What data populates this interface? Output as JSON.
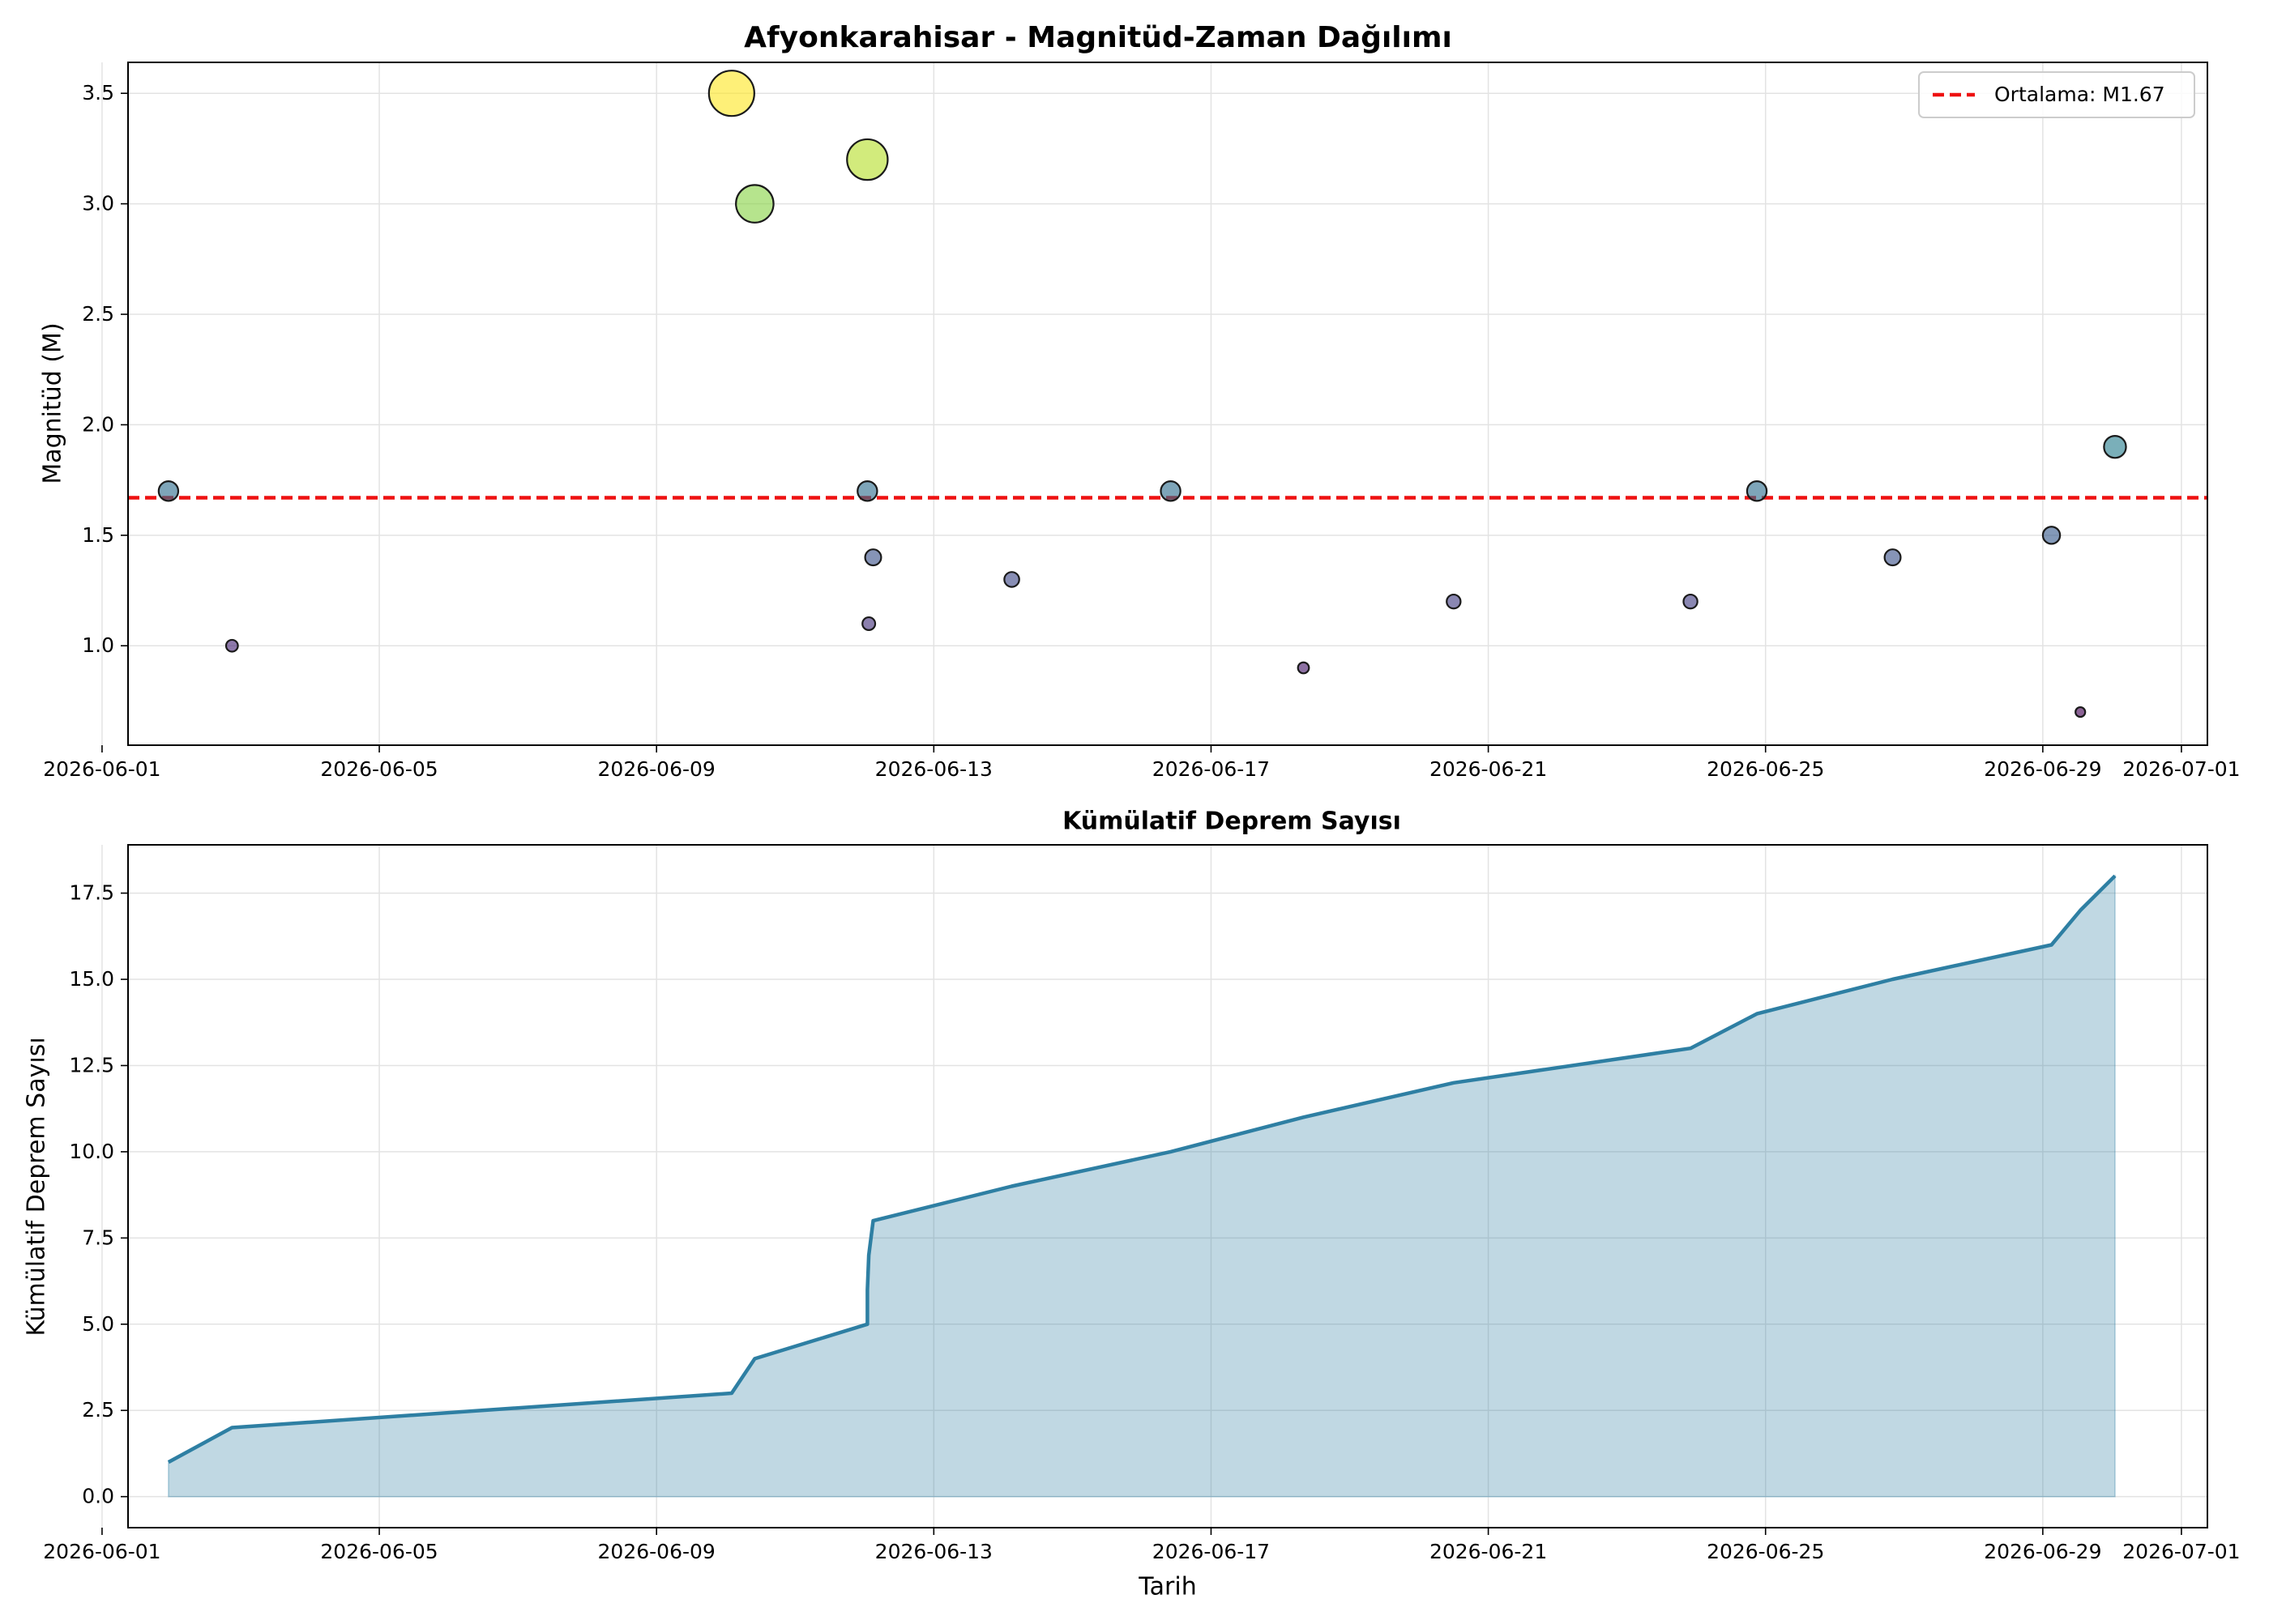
{
  "chart_data": [
    {
      "type": "scatter",
      "title": "Afyonkarahisar - Magnitüd-Zaman Dağılımı",
      "xlabel": "",
      "ylabel": "Magnitüd (M)",
      "xlim": [
        "2026-06-01T09:00",
        "2026-07-01T09:00"
      ],
      "ylim": [
        0.55,
        3.64
      ],
      "grid": true,
      "x_ticks": [
        "2026-06-01",
        "2026-06-05",
        "2026-06-09",
        "2026-06-13",
        "2026-06-17",
        "2026-06-21",
        "2026-06-25",
        "2026-06-29",
        "2026-07-01"
      ],
      "y_ticks": [
        "1.0",
        "1.5",
        "2.0",
        "2.5",
        "3.0",
        "3.5"
      ],
      "legend": {
        "position": "top-right",
        "entries": [
          {
            "label": "Ortalama: M1.67",
            "style": "dashed",
            "color": "#ee1111"
          }
        ]
      },
      "mean_line": 1.67,
      "colormap": "viridis",
      "points": [
        {
          "x": "2026-06-01T23:00",
          "y": 1.7
        },
        {
          "x": "2026-06-02T21:00",
          "y": 1.0
        },
        {
          "x": "2026-06-10T02:00",
          "y": 3.5
        },
        {
          "x": "2026-06-10T10:00",
          "y": 3.0
        },
        {
          "x": "2026-06-12T01:00",
          "y": 3.2
        },
        {
          "x": "2026-06-12T01:00",
          "y": 1.7
        },
        {
          "x": "2026-06-12T01:30",
          "y": 1.1
        },
        {
          "x": "2026-06-12T03:00",
          "y": 1.4
        },
        {
          "x": "2026-06-14T03:00",
          "y": 1.3
        },
        {
          "x": "2026-06-16T10:00",
          "y": 1.7
        },
        {
          "x": "2026-06-18T08:00",
          "y": 0.9
        },
        {
          "x": "2026-06-20T12:00",
          "y": 1.2
        },
        {
          "x": "2026-06-23T22:00",
          "y": 1.2
        },
        {
          "x": "2026-06-24T21:00",
          "y": 1.7
        },
        {
          "x": "2026-06-26T20:00",
          "y": 1.4
        },
        {
          "x": "2026-06-29T03:00",
          "y": 1.5
        },
        {
          "x": "2026-06-29T13:00",
          "y": 0.7
        },
        {
          "x": "2026-06-30T01:00",
          "y": 1.9
        }
      ]
    },
    {
      "type": "area",
      "title": "Kümülatif Deprem Sayısı",
      "xlabel": "Tarih",
      "ylabel": "Kümülatif Deprem Sayısı",
      "xlim": [
        "2026-06-01T09:00",
        "2026-07-01T09:00"
      ],
      "ylim": [
        -0.9,
        18.9
      ],
      "grid": true,
      "x_ticks": [
        "2026-06-01",
        "2026-06-05",
        "2026-06-09",
        "2026-06-13",
        "2026-06-17",
        "2026-06-21",
        "2026-06-25",
        "2026-06-29",
        "2026-07-01"
      ],
      "y_ticks": [
        "0.0",
        "2.5",
        "5.0",
        "7.5",
        "10.0",
        "12.5",
        "15.0",
        "17.5"
      ],
      "series": [
        {
          "x": [
            "2026-06-01T23:00",
            "2026-06-02T21:00",
            "2026-06-10T02:00",
            "2026-06-10T10:00",
            "2026-06-12T01:00",
            "2026-06-12T01:00",
            "2026-06-12T01:30",
            "2026-06-12T03:00",
            "2026-06-14T03:00",
            "2026-06-16T10:00",
            "2026-06-18T08:00",
            "2026-06-20T12:00",
            "2026-06-23T22:00",
            "2026-06-24T21:00",
            "2026-06-26T20:00",
            "2026-06-29T03:00",
            "2026-06-29T13:00",
            "2026-06-30T01:00"
          ],
          "values": [
            1,
            2,
            3,
            4,
            5,
            6,
            7,
            8,
            9,
            10,
            11,
            12,
            13,
            14,
            15,
            16,
            17,
            18
          ],
          "color": "#2e7fa3"
        }
      ]
    }
  ]
}
